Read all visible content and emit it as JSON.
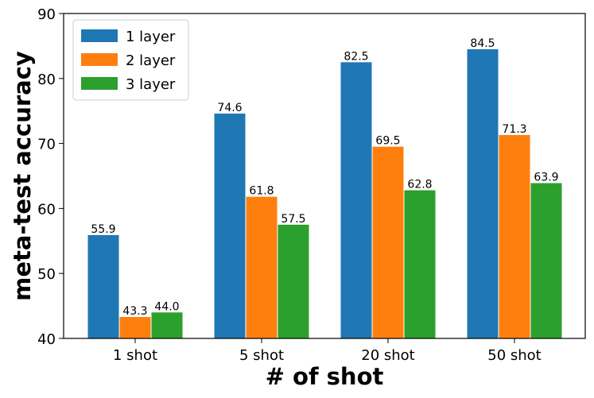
{
  "chart_data": {
    "type": "bar",
    "categories": [
      "1 shot",
      "5 shot",
      "20 shot",
      "50 shot"
    ],
    "series": [
      {
        "name": "1 layer",
        "values": [
          55.9,
          74.6,
          82.5,
          84.5
        ],
        "color": "#1f77b4"
      },
      {
        "name": "2 layer",
        "values": [
          43.3,
          61.8,
          69.5,
          71.3
        ],
        "color": "#ff7f0e"
      },
      {
        "name": "3 layer",
        "values": [
          44.0,
          57.5,
          62.8,
          63.9
        ],
        "color": "#2ca02c"
      }
    ],
    "value_labels": [
      [
        "55.9",
        "74.6",
        "82.5",
        "84.5"
      ],
      [
        "43.3",
        "61.8",
        "69.5",
        "71.3"
      ],
      [
        "44.0",
        "57.5",
        "62.8",
        "63.9"
      ]
    ],
    "xlabel": "# of shot",
    "ylabel": "meta-test accuracy",
    "ylim": [
      40,
      90
    ],
    "yticks": [
      "40",
      "50",
      "60",
      "70",
      "80",
      "90"
    ],
    "grid": false,
    "legend_position": "top-left"
  }
}
